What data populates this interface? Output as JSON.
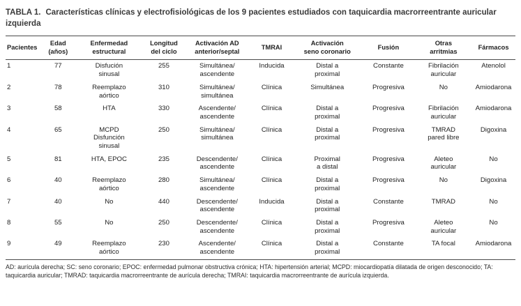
{
  "title": {
    "label": "TABLA 1.",
    "text": "Características clínicas y electrofisiológicas de los 9 pacientes estudiados con taquicardia macrorreentrante auricular izquierda"
  },
  "table": {
    "columns": [
      {
        "label": "Pacientes",
        "align": "left"
      },
      {
        "label": "Edad\n(años)"
      },
      {
        "label": "Enfermedad\nestructural"
      },
      {
        "label": "Longitud\ndel ciclo"
      },
      {
        "label": "Activación AD\nanterior/septal"
      },
      {
        "label": "TMRAI"
      },
      {
        "label": "Activación\nseno coronario"
      },
      {
        "label": "Fusión"
      },
      {
        "label": "Otras\narritmias"
      },
      {
        "label": "Fármacos"
      }
    ],
    "rows": [
      [
        "1",
        "77",
        "Disfución\nsinusal",
        "255",
        "Simultánea/\nascendente",
        "Inducida",
        "Distal a\nproximal",
        "Constante",
        "Fibrilación\nauricular",
        "Atenolol"
      ],
      [
        "2",
        "78",
        "Reemplazo\naórtico",
        "310",
        "Simultánea/\nsimultánea",
        "Clínica",
        "Simultánea",
        "Progresiva",
        "No",
        "Amiodarona"
      ],
      [
        "3",
        "58",
        "HTA",
        "330",
        "Ascendente/\nascendente",
        "Clínica",
        "Distal a\nproximal",
        "Progresiva",
        "Fibrilación\nauricular",
        "Amiodarona"
      ],
      [
        "4",
        "65",
        "MCPD\nDisfunción\nsinusal",
        "250",
        "Simultánea/\nsimultánea",
        "Clínica",
        "Distal a\nproximal",
        "Progresiva",
        "TMRAD\npared libre",
        "Digoxina"
      ],
      [
        "5",
        "81",
        "HTA, EPOC",
        "235",
        "Descendente/\nascendente",
        "Clínica",
        "Proximal\na distal",
        "Progresiva",
        "Aleteo\nauricular",
        "No"
      ],
      [
        "6",
        "40",
        "Reemplazo\naórtico",
        "280",
        "Simultánea/\nascendente",
        "Clínica",
        "Distal a\nproximal",
        "Progresiva",
        "No",
        "Digoxina"
      ],
      [
        "7",
        "40",
        "No",
        "440",
        "Descendente/\nascendente",
        "Inducida",
        "Distal a\nproximal",
        "Constante",
        "TMRAD",
        "No"
      ],
      [
        "8",
        "55",
        "No",
        "250",
        "Descendente/\nascendente",
        "Clínica",
        "Distal a\nproximal",
        "Progresiva",
        "Aleteo\nauricular",
        "No"
      ],
      [
        "9",
        "49",
        "Reemplazo\naórtico",
        "230",
        "Ascendente/\nascendente",
        "Clínica",
        "Distal a\nproximal",
        "Constante",
        "TA focal",
        "Amiodarona"
      ]
    ]
  },
  "footnote": "AD: aurícula derecha; SC: seno coronario; EPOC: enfermedad pulmonar obstructiva crónica; HTA: hipertensión arterial; MCPD: miocardiopatía dilatada de origen desconocido; TA: taquicardia auricular; TMRAD: taquicardia macrorreentrante de aurícula derecha; TMRAI: taquicardia macrorreentrante de aurícula izquierda."
}
